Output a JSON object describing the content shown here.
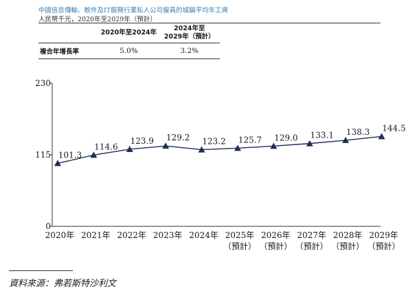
{
  "header": {
    "title": "中國信息傳輸、軟件及IT服務行業私人公司僱員的城鎮平均年工資",
    "subtitle": "人民幣千元，2020年至2029年（預計）"
  },
  "cagr_table": {
    "col1": "2020年至2024年",
    "col2_line1": "2024年至",
    "col2_line2": "2029年（預計）",
    "row_label": "複合年增長率",
    "val1": "5.0%",
    "val2": "3.2%"
  },
  "chart_data": {
    "type": "line",
    "categories": [
      "2020年",
      "2021年",
      "2022年",
      "2023年",
      "2024年",
      "2025年",
      "2026年",
      "2027年",
      "2028年",
      "2029年"
    ],
    "category_sublabels": [
      "",
      "",
      "",
      "",
      "",
      "（預計）",
      "（預計）",
      "（預計）",
      "（預計）",
      "（預計）"
    ],
    "values": [
      101.3,
      114.6,
      123.9,
      129.2,
      123.2,
      125.7,
      129.0,
      133.1,
      138.3,
      144.5
    ],
    "value_labels": [
      "101.3",
      "114.6",
      "123.9",
      "129.2",
      "123.2",
      "125.7",
      "129.0",
      "133.1",
      "138.3",
      "144.5"
    ],
    "yticks": [
      0,
      115,
      230
    ],
    "ylim": [
      0,
      230
    ],
    "grid": false,
    "marker": "triangle",
    "line_color": "#1f2d5a"
  },
  "source": "資料來源：弗若斯特沙利文"
}
